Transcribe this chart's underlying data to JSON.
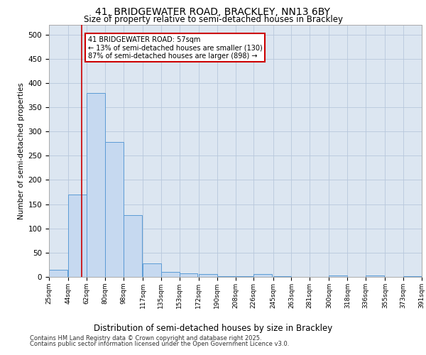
{
  "title_line1": "41, BRIDGEWATER ROAD, BRACKLEY, NN13 6BY",
  "title_line2": "Size of property relative to semi-detached houses in Brackley",
  "xlabel": "Distribution of semi-detached houses by size in Brackley",
  "ylabel": "Number of semi-detached properties",
  "footnote_line1": "Contains HM Land Registry data © Crown copyright and database right 2025.",
  "footnote_line2": "Contains public sector information licensed under the Open Government Licence v3.0.",
  "annotation_line1": "41 BRIDGEWATER ROAD: 57sqm",
  "annotation_line2": "← 13% of semi-detached houses are smaller (130)",
  "annotation_line3": "87% of semi-detached houses are larger (898) →",
  "property_size": 57,
  "bin_starts": [
    25,
    44,
    62,
    80,
    98,
    117,
    135,
    153,
    172,
    190,
    208,
    226,
    245,
    263,
    281,
    300,
    318,
    336,
    355,
    373
  ],
  "bin_labels": [
    "25sqm",
    "44sqm",
    "62sqm",
    "80sqm",
    "98sqm",
    "117sqm",
    "135sqm",
    "153sqm",
    "172sqm",
    "190sqm",
    "208sqm",
    "226sqm",
    "245sqm",
    "263sqm",
    "281sqm",
    "300sqm",
    "318sqm",
    "336sqm",
    "355sqm",
    "373sqm",
    "391sqm"
  ],
  "bar_heights": [
    15,
    170,
    380,
    278,
    128,
    28,
    10,
    7,
    6,
    1,
    1,
    6,
    1,
    0,
    0,
    3,
    0,
    3,
    0,
    1
  ],
  "bar_color": "#c6d9f0",
  "bar_edge_color": "#5b9bd5",
  "vline_color": "#cc0000",
  "vline_x": 57,
  "annotation_box_color": "#cc0000",
  "background_color": "#dce6f1",
  "grid_color": "#b8c8dc",
  "ylim": [
    0,
    520
  ],
  "yticks": [
    0,
    50,
    100,
    150,
    200,
    250,
    300,
    350,
    400,
    450,
    500
  ]
}
